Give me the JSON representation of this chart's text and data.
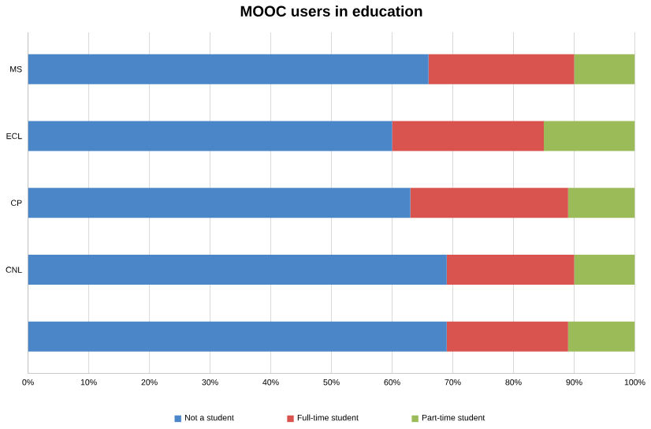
{
  "chart_data": {
    "type": "bar",
    "orientation": "horizontal",
    "stacked": true,
    "title": "MOOC users in education",
    "categories": [
      "MS",
      "ECL",
      "CP",
      "CNL",
      null
    ],
    "series": [
      {
        "name": "Not a student",
        "color": "#4a86c8",
        "values": [
          66,
          60,
          63,
          69,
          69
        ]
      },
      {
        "name": "Full-time student",
        "color": "#d9534f",
        "values": [
          24,
          25,
          26,
          21,
          20
        ]
      },
      {
        "name": "Part-time student",
        "color": "#9bbb59",
        "values": [
          10,
          15,
          11,
          10,
          11
        ]
      }
    ],
    "xlim": [
      0,
      100
    ],
    "xticks": [
      {
        "value": 0,
        "label": "0%"
      },
      {
        "value": 10,
        "label": "10%"
      },
      {
        "value": 20,
        "label": "20%"
      },
      {
        "value": 30,
        "label": "30%"
      },
      {
        "value": 40,
        "label": "40%"
      },
      {
        "value": 50,
        "label": "50%"
      },
      {
        "value": 60,
        "label": "60%"
      },
      {
        "value": 70,
        "label": "70%"
      },
      {
        "value": 80,
        "label": "80%"
      },
      {
        "value": 90,
        "label": "90%"
      },
      {
        "value": 100,
        "label": "100%"
      }
    ],
    "grid": "x",
    "legend": "bottom"
  }
}
